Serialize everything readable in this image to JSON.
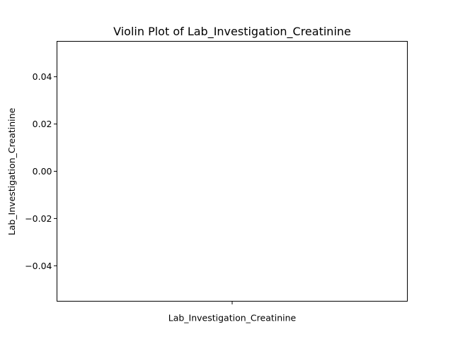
{
  "chart_data": {
    "type": "violin",
    "title": "Violin Plot of Lab_Investigation_Creatinine",
    "xlabel": "",
    "ylabel": "Lab_Investigation_Creatinine",
    "categories": [
      "Lab_Investigation_Creatinine"
    ],
    "series": [
      {
        "values": []
      }
    ],
    "ylim": [
      -0.055,
      0.055
    ],
    "yticks": [
      -0.04,
      -0.02,
      0.0,
      0.02,
      0.04
    ],
    "ytick_labels": [
      "−0.04",
      "−0.02",
      "0.00",
      "0.02",
      "0.04"
    ],
    "grid": false,
    "legend": "none"
  }
}
